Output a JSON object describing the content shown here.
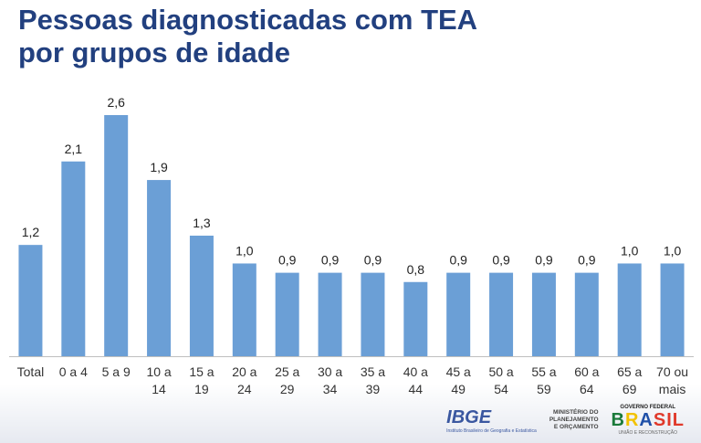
{
  "title_line1": "Pessoas diagnosticadas com TEA",
  "title_line2": "por grupos de idade",
  "chart_data": {
    "type": "bar",
    "title": "Pessoas diagnosticadas com TEA por grupos de idade",
    "categories": [
      [
        "Total"
      ],
      [
        "0 a 4"
      ],
      [
        "5 a 9"
      ],
      [
        "10 a",
        "14"
      ],
      [
        "15 a",
        "19"
      ],
      [
        "20 a",
        "24"
      ],
      [
        "25 a",
        "29"
      ],
      [
        "30 a",
        "34"
      ],
      [
        "35 a",
        "39"
      ],
      [
        "40 a",
        "44"
      ],
      [
        "45 a",
        "49"
      ],
      [
        "50 a",
        "54"
      ],
      [
        "55 a",
        "59"
      ],
      [
        "60 a",
        "64"
      ],
      [
        "65 a",
        "69"
      ],
      [
        "70 ou",
        "mais"
      ]
    ],
    "values": [
      1.2,
      2.1,
      2.6,
      1.9,
      1.3,
      1.0,
      0.9,
      0.9,
      0.9,
      0.8,
      0.9,
      0.9,
      0.9,
      0.9,
      1.0,
      1.0
    ],
    "labels": [
      "1,2",
      "2,1",
      "2,6",
      "1,9",
      "1,3",
      "1,0",
      "0,9",
      "0,9",
      "0,9",
      "0,8",
      "0,9",
      "0,9",
      "0,9",
      "0,9",
      "1,0",
      "1,0"
    ],
    "ylim": [
      0,
      2.6
    ],
    "bar_color": "#6b9fd6",
    "grid": false
  },
  "logos": {
    "ibge": "IBGE",
    "ibge_sub": "Instituto Brasileiro de Geografia e Estatística",
    "ministerio": [
      "MINISTÉRIO DO",
      "PLANEJAMENTO",
      "E ORÇAMENTO"
    ],
    "gov_top": "GOVERNO FEDERAL",
    "gov_mark": [
      "B",
      "R",
      "A",
      "SIL"
    ],
    "gov_sub": "UNIÃO E RECONSTRUÇÃO"
  }
}
